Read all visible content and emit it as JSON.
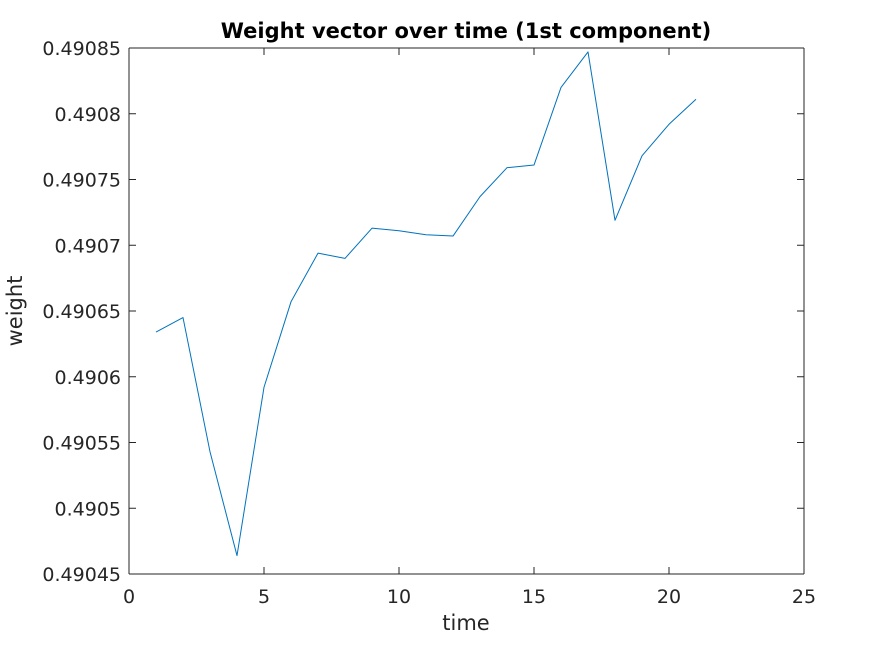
{
  "chart_data": {
    "type": "line",
    "title": "Weight vector over time (1st component)",
    "xlabel": "time",
    "ylabel": "weight",
    "xlim": [
      0,
      25
    ],
    "ylim": [
      0.49045,
      0.49085
    ],
    "xticks": [
      0,
      5,
      10,
      15,
      20,
      25
    ],
    "xtick_labels": [
      "0",
      "5",
      "10",
      "15",
      "20",
      "25"
    ],
    "yticks": [
      0.49045,
      0.4905,
      0.49055,
      0.4906,
      0.49065,
      0.4907,
      0.49075,
      0.4908,
      0.49085
    ],
    "ytick_labels": [
      "0.49045",
      "0.4905",
      "0.49055",
      "0.4906",
      "0.49065",
      "0.4907",
      "0.49075",
      "0.4908",
      "0.49085"
    ],
    "grid": false,
    "series": [
      {
        "color": "#0072bd",
        "x": [
          1,
          2,
          3,
          4,
          5,
          6,
          7,
          8,
          9,
          10,
          11,
          12,
          13,
          14,
          15,
          16,
          17,
          18,
          19,
          20,
          21
        ],
        "y": [
          0.490634,
          0.490645,
          0.490543,
          0.490464,
          0.490592,
          0.490657,
          0.490694,
          0.49069,
          0.490713,
          0.490711,
          0.490708,
          0.490707,
          0.490737,
          0.490759,
          0.490761,
          0.49082,
          0.490847,
          0.490719,
          0.490768,
          0.490792,
          0.490811
        ]
      }
    ]
  }
}
